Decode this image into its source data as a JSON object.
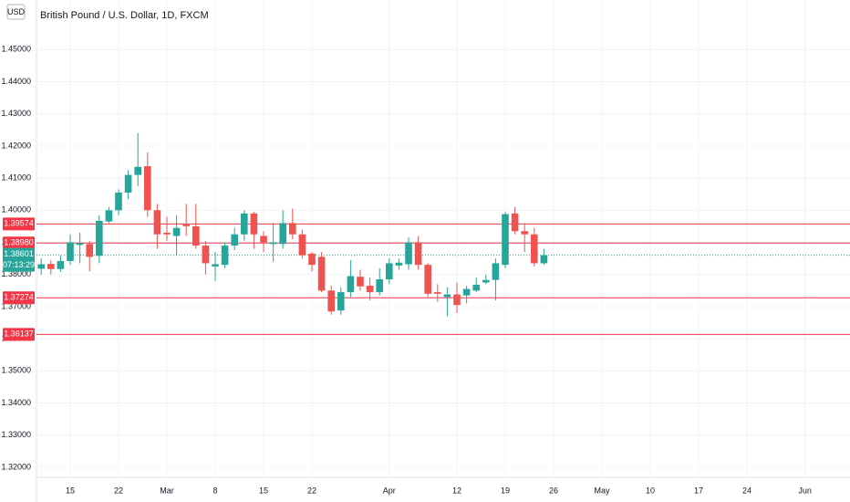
{
  "chart_data": {
    "type": "candlestick",
    "title": "British Pound / U.S. Dollar, 1D, FXCM",
    "currency": "USD",
    "categories": [
      null,
      null,
      null,
      "15",
      null,
      null,
      null,
      null,
      "22",
      null,
      null,
      null,
      null,
      "Mar",
      null,
      null,
      null,
      null,
      "8",
      null,
      null,
      null,
      null,
      "15",
      null,
      null,
      null,
      null,
      "22",
      null,
      null,
      null,
      null,
      null,
      null,
      null,
      "Apr",
      null,
      null,
      null,
      null,
      null,
      null,
      "12",
      null,
      null,
      null,
      null,
      "19",
      null,
      null,
      null,
      null,
      "26",
      null,
      null,
      null,
      null,
      "May",
      null,
      null,
      null,
      null,
      "10",
      null,
      null,
      null,
      null,
      "17",
      null,
      null,
      null,
      null,
      "24",
      null,
      null,
      null,
      null,
      null,
      "Jun",
      null,
      null,
      null,
      null
    ],
    "open": [
      1.3818,
      1.3833,
      1.3817,
      1.3842,
      1.3892,
      1.3895,
      1.3858,
      1.3965,
      1.4,
      1.4055,
      1.411,
      1.4137,
      1.4,
      1.393,
      1.392,
      1.3955,
      1.395,
      1.389,
      1.3825,
      1.383,
      1.389,
      1.3925,
      1.399,
      1.392,
      1.3895,
      1.3895,
      1.396,
      1.3925,
      1.3865,
      1.3855,
      1.375,
      1.3688,
      1.3745,
      1.3793,
      1.3765,
      1.3745,
      1.3785,
      1.3828,
      1.3832,
      1.39,
      1.383,
      1.3745,
      1.373,
      1.3738,
      1.3735,
      1.375,
      1.3775,
      1.3783,
      1.383,
      1.399,
      1.3935,
      1.3925,
      1.3835,
      null,
      null,
      null,
      null,
      null,
      null,
      null,
      null,
      null,
      null,
      null,
      null,
      null,
      null,
      null,
      null,
      null,
      null,
      null,
      null,
      null,
      null,
      null,
      null,
      null,
      null,
      null,
      null,
      null,
      null,
      null
    ],
    "high": [
      1.385,
      1.3845,
      1.3858,
      1.3925,
      1.393,
      1.3905,
      1.3985,
      1.401,
      1.4065,
      1.4125,
      1.424,
      1.418,
      1.402,
      1.398,
      1.3985,
      1.402,
      1.402,
      1.3905,
      1.387,
      1.39,
      1.3945,
      1.4,
      1.3995,
      1.3935,
      1.396,
      1.4,
      1.4005,
      1.394,
      1.387,
      1.387,
      1.3765,
      1.376,
      1.3845,
      1.3815,
      1.379,
      1.382,
      1.385,
      1.385,
      1.3915,
      1.392,
      1.3835,
      1.377,
      1.376,
      1.3775,
      1.3765,
      1.379,
      1.38,
      1.385,
      1.3995,
      1.401,
      1.396,
      1.3945,
      1.388,
      null,
      null,
      null,
      null,
      null,
      null,
      null,
      null,
      null,
      null,
      null,
      null,
      null,
      null,
      null,
      null,
      null,
      null,
      null,
      null,
      null,
      null,
      null,
      null,
      null,
      null,
      null,
      null,
      null,
      null,
      null
    ],
    "low": [
      1.38,
      1.38,
      1.3808,
      1.383,
      1.3835,
      1.381,
      1.3835,
      1.396,
      1.3985,
      1.4035,
      1.4075,
      1.398,
      1.388,
      1.3905,
      1.386,
      1.392,
      1.388,
      1.38,
      1.378,
      1.382,
      1.3875,
      1.3905,
      1.388,
      1.387,
      1.384,
      1.388,
      1.391,
      1.385,
      1.381,
      1.3745,
      1.3675,
      1.3675,
      1.373,
      1.375,
      1.372,
      1.3735,
      1.377,
      1.3815,
      1.3815,
      1.3815,
      1.373,
      1.3715,
      1.367,
      1.368,
      1.371,
      1.3745,
      1.377,
      1.372,
      1.382,
      1.3925,
      1.387,
      1.3825,
      1.383,
      null,
      null,
      null,
      null,
      null,
      null,
      null,
      null,
      null,
      null,
      null,
      null,
      null,
      null,
      null,
      null,
      null,
      null,
      null,
      null,
      null,
      null,
      null,
      null,
      null,
      null,
      null,
      null,
      null,
      null,
      null
    ],
    "close": [
      1.3832,
      1.3817,
      1.3842,
      1.39,
      1.3898,
      1.3855,
      1.3967,
      1.4,
      1.4055,
      1.411,
      1.4135,
      1.4,
      1.3925,
      1.3925,
      1.3945,
      1.395,
      1.389,
      1.3835,
      1.3832,
      1.389,
      1.3925,
      1.399,
      1.3925,
      1.39,
      1.39,
      1.396,
      1.3925,
      1.386,
      1.383,
      1.375,
      1.3685,
      1.3745,
      1.3795,
      1.3763,
      1.3745,
      1.3785,
      1.3835,
      1.3837,
      1.39,
      1.383,
      1.374,
      1.374,
      1.3738,
      1.3705,
      1.3755,
      1.3768,
      1.3783,
      1.3835,
      1.3988,
      1.3935,
      1.3925,
      1.3835,
      1.38601,
      null,
      null,
      null,
      null,
      null,
      null,
      null,
      null,
      null,
      null,
      null,
      null,
      null,
      null,
      null,
      null,
      null,
      null,
      null,
      null,
      null,
      null,
      null,
      null,
      null,
      null,
      null,
      null,
      null,
      null,
      null
    ],
    "up_color": "#26a69a",
    "down_color": "#ef5350",
    "ylim": [
      1.31686,
      1.46544
    ],
    "yticks": [
      {
        "value": 1.32,
        "label": "1.32000"
      },
      {
        "value": 1.33,
        "label": "1.33000"
      },
      {
        "value": 1.34,
        "label": "1.34000"
      },
      {
        "value": 1.35,
        "label": "1.35000"
      },
      {
        "value": 1.36,
        "label": "1.36000"
      },
      {
        "value": 1.37,
        "label": "1.37000"
      },
      {
        "value": 1.38,
        "label": "1.38000"
      },
      {
        "value": 1.39,
        "label": "1.39000"
      },
      {
        "value": 1.4,
        "label": "1.40000"
      },
      {
        "value": 1.41,
        "label": "1.41000"
      },
      {
        "value": 1.42,
        "label": "1.42000"
      },
      {
        "value": 1.43,
        "label": "1.43000"
      },
      {
        "value": 1.44,
        "label": "1.44000"
      },
      {
        "value": 1.45,
        "label": "1.45000"
      }
    ],
    "grid": true,
    "levels": [
      {
        "value": 1.39574,
        "label": "1.39574"
      },
      {
        "value": 1.3898,
        "label": "1.38980"
      },
      {
        "value": 1.37274,
        "label": "1.37274"
      },
      {
        "value": 1.36137,
        "label": "1.36137"
      }
    ],
    "level_color": "#f23645",
    "last_price": {
      "value": 1.38601,
      "label": "1.38601"
    },
    "countdown": "07:13:29"
  }
}
